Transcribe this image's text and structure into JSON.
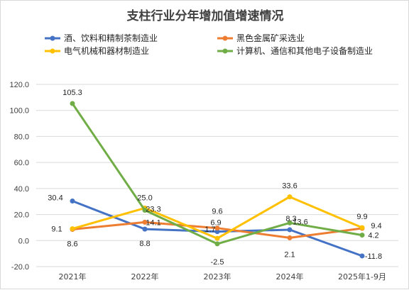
{
  "chart_data": {
    "type": "line",
    "title": "支柱行业分年增加值增速情况",
    "categories": [
      "2021年",
      "2022年",
      "2023年",
      "2024年",
      "2025年1-9月"
    ],
    "ylim": [
      -20,
      120
    ],
    "yticks": [
      "-20.0",
      "0.0",
      "20.0",
      "40.0",
      "60.0",
      "80.0",
      "100.0",
      "120.0"
    ],
    "grid": true,
    "legend_position": "top",
    "series": [
      {
        "name": "酒、饮料和精制茶制造业",
        "color": "#4472c4",
        "values": [
          30.4,
          8.8,
          6.9,
          8.3,
          -11.8
        ],
        "labels": [
          "30.4",
          "8.8",
          "6.9",
          "8.3",
          "-11.8"
        ]
      },
      {
        "name": "黑色金属矿采选业",
        "color": "#ed7d31",
        "values": [
          8.6,
          14.1,
          9.6,
          2.1,
          9.4
        ],
        "labels": [
          "8.6",
          "14.1",
          "9.6",
          "2.1",
          "9.4"
        ]
      },
      {
        "name": "电气机械和器材制造业",
        "color": "#ffc000",
        "values": [
          9.1,
          25.0,
          1.7,
          33.6,
          9.9
        ],
        "labels": [
          "9.1",
          "25.0",
          "1.7",
          "33.6",
          "9.9"
        ]
      },
      {
        "name": "计算机、通信和其他电子设备制造业",
        "color": "#70ad47",
        "values": [
          105.3,
          23.3,
          -2.5,
          13.6,
          4.2
        ],
        "labels": [
          "105.3",
          "23.3",
          "-2.5",
          "13.6",
          "4.2"
        ]
      }
    ]
  }
}
